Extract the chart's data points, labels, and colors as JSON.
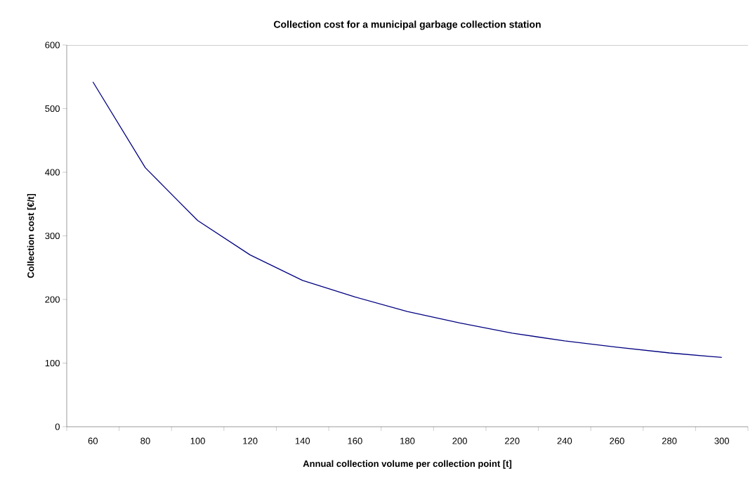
{
  "chart_data": {
    "type": "line",
    "title": "Collection cost for a municipal garbage collection station",
    "xlabel": "Annual collection volume per collection point [t]",
    "ylabel": "Collection cost [€/t]",
    "categories": [
      "60",
      "80",
      "100",
      "120",
      "140",
      "160",
      "180",
      "200",
      "220",
      "240",
      "260",
      "280",
      "300"
    ],
    "series": [
      {
        "color": "#000080",
        "values": [
          542,
          407,
          324,
          270,
          230,
          204,
          181,
          163,
          147,
          135,
          125,
          116,
          109
        ]
      }
    ],
    "ylim": [
      0,
      600
    ],
    "yticks": [
      0,
      100,
      200,
      300,
      400,
      500,
      600
    ],
    "grid": false,
    "marker": "none",
    "line_style": "solid"
  }
}
